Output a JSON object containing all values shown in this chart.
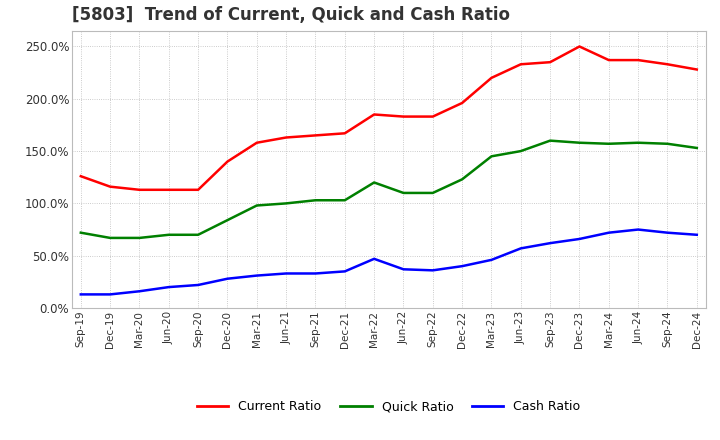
{
  "title": "[5803]  Trend of Current, Quick and Cash Ratio",
  "x_labels": [
    "Sep-19",
    "Dec-19",
    "Mar-20",
    "Jun-20",
    "Sep-20",
    "Dec-20",
    "Mar-21",
    "Jun-21",
    "Sep-21",
    "Dec-21",
    "Mar-22",
    "Jun-22",
    "Sep-22",
    "Dec-22",
    "Mar-23",
    "Jun-23",
    "Sep-23",
    "Dec-23",
    "Mar-24",
    "Jun-24",
    "Sep-24",
    "Dec-24"
  ],
  "current_ratio": [
    126.0,
    116.0,
    113.0,
    113.0,
    113.0,
    140.0,
    158.0,
    163.0,
    165.0,
    167.0,
    185.0,
    183.0,
    183.0,
    196.0,
    220.0,
    233.0,
    235.0,
    250.0,
    237.0,
    237.0,
    233.0,
    228.0
  ],
  "quick_ratio": [
    72.0,
    67.0,
    67.0,
    70.0,
    70.0,
    84.0,
    98.0,
    100.0,
    103.0,
    103.0,
    120.0,
    110.0,
    110.0,
    123.0,
    145.0,
    150.0,
    160.0,
    158.0,
    157.0,
    158.0,
    157.0,
    153.0
  ],
  "cash_ratio": [
    13.0,
    13.0,
    16.0,
    20.0,
    22.0,
    28.0,
    31.0,
    33.0,
    33.0,
    35.0,
    47.0,
    37.0,
    36.0,
    40.0,
    46.0,
    57.0,
    62.0,
    66.0,
    72.0,
    75.0,
    72.0,
    70.0
  ],
  "current_color": "#FF0000",
  "quick_color": "#008000",
  "cash_color": "#0000FF",
  "ylim": [
    0,
    265
  ],
  "yticks": [
    0,
    50,
    100,
    150,
    200,
    250
  ],
  "ytick_labels": [
    "0.0%",
    "50.0%",
    "100.0%",
    "150.0%",
    "200.0%",
    "250.0%"
  ],
  "background_color": "#ffffff",
  "plot_bg_color": "#ffffff",
  "grid_color": "#aaaaaa",
  "title_fontsize": 12,
  "legend_labels": [
    "Current Ratio",
    "Quick Ratio",
    "Cash Ratio"
  ]
}
